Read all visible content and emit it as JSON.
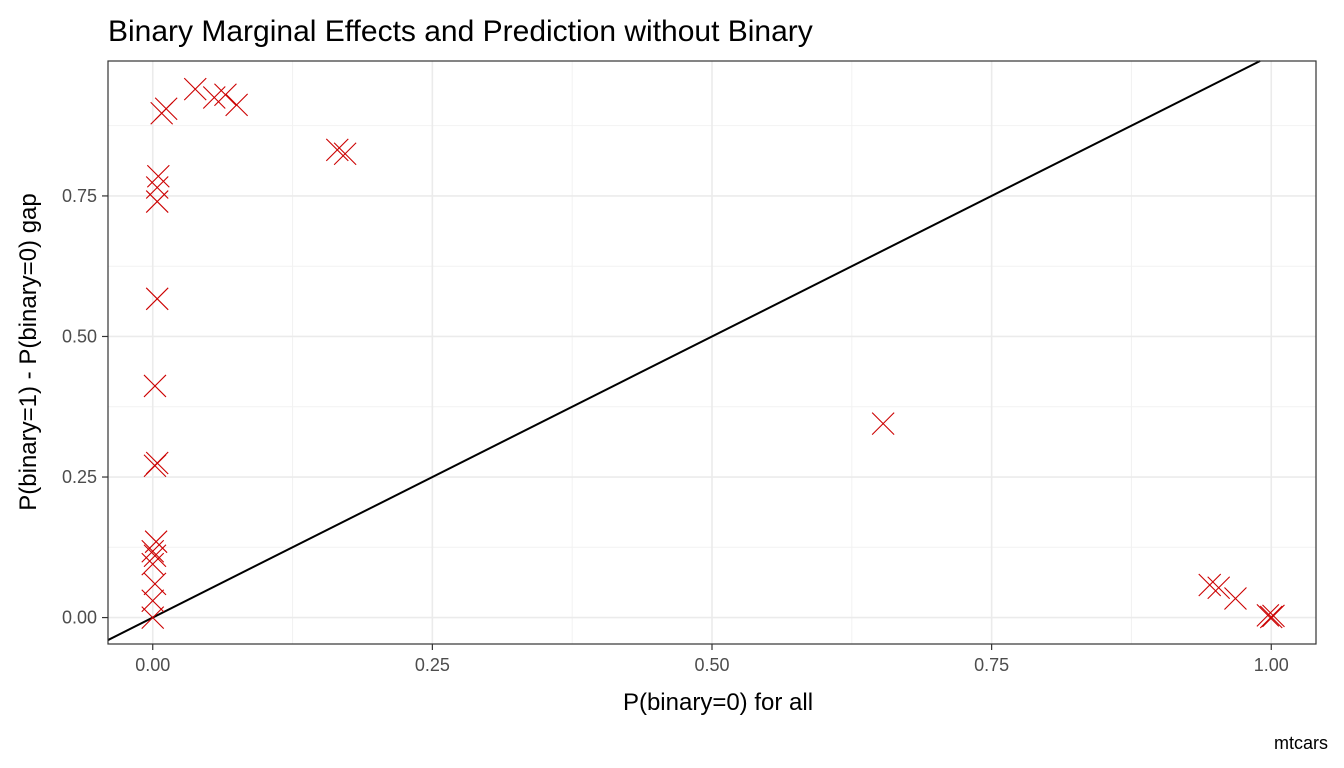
{
  "chart_data": {
    "type": "scatter",
    "title": "Binary Marginal Effects and Prediction without Binary",
    "xlabel": "P(binary=0) for all",
    "ylabel": "P(binary=1) - P(binary=0) gap",
    "caption": "mtcars",
    "xlim": [
      -0.04,
      1.04
    ],
    "ylim": [
      -0.047,
      0.99
    ],
    "x_ticks": [
      0.0,
      0.25,
      0.5,
      0.75,
      1.0
    ],
    "x_tick_labels": [
      "0.00",
      "0.25",
      "0.50",
      "0.75",
      "1.00"
    ],
    "y_ticks": [
      0.0,
      0.25,
      0.5,
      0.75
    ],
    "y_tick_labels": [
      "0.00",
      "0.25",
      "0.50",
      "0.75"
    ],
    "grid": true,
    "reference_line": {
      "type": "identity",
      "intercept": 0,
      "slope": 1,
      "color": "#000000"
    },
    "marker": {
      "shape": "x",
      "color": "#cc0000"
    },
    "points": [
      {
        "x": 0.0,
        "y": 0.0
      },
      {
        "x": 0.0,
        "y": 0.03
      },
      {
        "x": 0.002,
        "y": 0.06
      },
      {
        "x": 0.0,
        "y": 0.095
      },
      {
        "x": 0.002,
        "y": 0.11
      },
      {
        "x": 0.0,
        "y": 0.118
      },
      {
        "x": 0.003,
        "y": 0.135
      },
      {
        "x": 0.002,
        "y": 0.27
      },
      {
        "x": 0.004,
        "y": 0.275
      },
      {
        "x": 0.002,
        "y": 0.412
      },
      {
        "x": 0.004,
        "y": 0.567
      },
      {
        "x": 0.004,
        "y": 0.74
      },
      {
        "x": 0.004,
        "y": 0.765
      },
      {
        "x": 0.005,
        "y": 0.785
      },
      {
        "x": 0.008,
        "y": 0.897
      },
      {
        "x": 0.012,
        "y": 0.905
      },
      {
        "x": 0.038,
        "y": 0.94
      },
      {
        "x": 0.055,
        "y": 0.925
      },
      {
        "x": 0.065,
        "y": 0.93
      },
      {
        "x": 0.075,
        "y": 0.912
      },
      {
        "x": 0.165,
        "y": 0.832
      },
      {
        "x": 0.172,
        "y": 0.825
      },
      {
        "x": 0.653,
        "y": 0.345
      },
      {
        "x": 0.945,
        "y": 0.058
      },
      {
        "x": 0.953,
        "y": 0.053
      },
      {
        "x": 0.968,
        "y": 0.034
      },
      {
        "x": 0.997,
        "y": 0.004
      },
      {
        "x": 1.0,
        "y": 0.001
      },
      {
        "x": 1.002,
        "y": 0.003
      }
    ]
  }
}
